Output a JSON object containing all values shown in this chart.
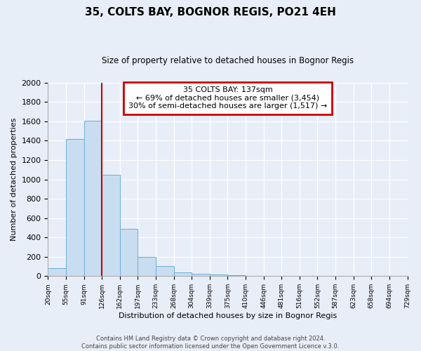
{
  "title": "35, COLTS BAY, BOGNOR REGIS, PO21 4EH",
  "subtitle": "Size of property relative to detached houses in Bognor Regis",
  "xlabel": "Distribution of detached houses by size in Bognor Regis",
  "ylabel": "Number of detached properties",
  "bar_values": [
    80,
    1420,
    1610,
    1050,
    490,
    200,
    105,
    38,
    22,
    15,
    8,
    5,
    3,
    2,
    1,
    1,
    0,
    0,
    0,
    0
  ],
  "bin_labels": [
    "20sqm",
    "55sqm",
    "91sqm",
    "126sqm",
    "162sqm",
    "197sqm",
    "233sqm",
    "268sqm",
    "304sqm",
    "339sqm",
    "375sqm",
    "410sqm",
    "446sqm",
    "481sqm",
    "516sqm",
    "552sqm",
    "587sqm",
    "623sqm",
    "658sqm",
    "694sqm",
    "729sqm"
  ],
  "bar_color": "#c9ddf0",
  "bar_edge_color": "#6baed6",
  "annotation_box_text": "35 COLTS BAY: 137sqm\n← 69% of detached houses are smaller (3,454)\n30% of semi-detached houses are larger (1,517) →",
  "annotation_box_color": "#ffffff",
  "annotation_box_edge_color": "#cc0000",
  "vline_color": "#cc0000",
  "vline_x_index": 3,
  "ylim": [
    0,
    2000
  ],
  "yticks": [
    0,
    200,
    400,
    600,
    800,
    1000,
    1200,
    1400,
    1600,
    1800,
    2000
  ],
  "footer_text": "Contains HM Land Registry data © Crown copyright and database right 2024.\nContains public sector information licensed under the Open Government Licence v.3.0.",
  "background_color": "#e8eef7",
  "plot_background_color": "#e8eef7"
}
